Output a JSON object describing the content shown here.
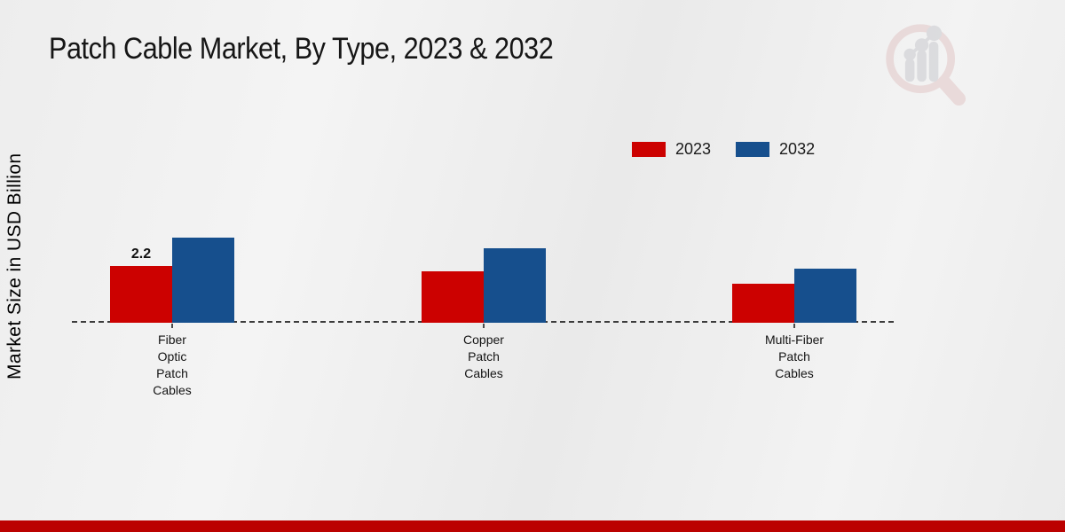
{
  "page": {
    "title": "Patch Cable Market, By Type, 2023 & 2032"
  },
  "y_axis_label": "Market Size in USD Billion",
  "legend": {
    "items": [
      {
        "label": "2023",
        "color": "#cc0100"
      },
      {
        "label": "2032",
        "color": "#164f8d"
      }
    ]
  },
  "watermark_icon": "magnifier-bar-chart-logo",
  "colors": {
    "series_2023": "#cc0100",
    "series_2032": "#164f8d",
    "baseline": "#3c3c3c",
    "footer_stripe": "#bb0100",
    "background": "#efefef",
    "title_text": "#161616"
  },
  "chart_data": {
    "type": "bar",
    "title": "Patch Cable Market, By Type, 2023 & 2032",
    "xlabel": "",
    "ylabel": "Market Size in USD Billion",
    "categories": [
      "Fiber Optic Patch Cables",
      "Copper Patch Cables",
      "Multi-Fiber Patch Cables"
    ],
    "category_label_lines": [
      [
        "Fiber",
        "Optic",
        "Patch",
        "Cables"
      ],
      [
        "Copper",
        "Patch",
        "Cables"
      ],
      [
        "Multi-Fiber",
        "Patch",
        "Cables"
      ]
    ],
    "series": [
      {
        "name": "2023",
        "color": "#cc0100",
        "values": [
          2.2,
          2.0,
          1.5
        ]
      },
      {
        "name": "2032",
        "color": "#164f8d",
        "values": [
          3.3,
          2.9,
          2.1
        ]
      }
    ],
    "data_labels": [
      {
        "series": "2023",
        "category_index": 0,
        "text": "2.2"
      }
    ],
    "ylim": [
      0,
      3.5
    ],
    "grid": false,
    "legend_position": "top-right",
    "baseline_style": "dashed"
  }
}
